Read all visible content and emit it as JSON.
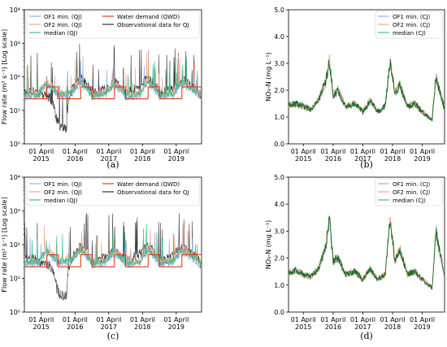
{
  "colors": {
    "of1": "#8fb0e8",
    "of2": "#f0a88a",
    "median": "#3fbf8f",
    "qwd": "#e8381d",
    "obs": "#333333",
    "cj_line": "#1a6b20"
  },
  "chart_data": [
    {
      "panel": "(a)",
      "type": "line",
      "ylabel": "Flow rate (m³ s⁻¹) [Log scale]",
      "yscale": "log",
      "ylim": [
        1,
        10000
      ],
      "yticks": [
        "10⁰",
        "10¹",
        "10²",
        "10³",
        "10⁴"
      ],
      "xlim": [
        "2014-10-01",
        "2019-12-31"
      ],
      "xticks": [
        [
          "01 April",
          "2015"
        ],
        [
          "01 April",
          "2016"
        ],
        [
          "01 April",
          "2017"
        ],
        [
          "01 April",
          "2018"
        ],
        [
          "01 April",
          "2019"
        ]
      ],
      "legend": {
        "placement": "top",
        "entries": [
          "OF1 min. (QJ)",
          "OF2 min. (QJ)",
          "median (QJ)",
          "Water demand (QWD)",
          "Observational data for QJ"
        ]
      },
      "series": [
        {
          "name": "Water demand (QWD)",
          "x": [
            "2014-10-01",
            "2015-03-01",
            "2015-06-01",
            "2015-10-01",
            "2016-03-01",
            "2016-06-01",
            "2016-10-01",
            "2017-03-01",
            "2017-06-01",
            "2017-10-01",
            "2018-03-01",
            "2018-06-01",
            "2018-10-01",
            "2019-03-01",
            "2019-06-01",
            "2019-12-31"
          ],
          "y": [
            22,
            22,
            50,
            22,
            22,
            50,
            22,
            22,
            50,
            22,
            22,
            50,
            22,
            22,
            50,
            22
          ]
        },
        {
          "name": "median (QJ)",
          "x": [
            "2014-10-01",
            "2015-03-01",
            "2015-06-01",
            "2015-10-01",
            "2016-03-01",
            "2016-06-01",
            "2016-10-01",
            "2017-03-01",
            "2017-06-01",
            "2017-10-01",
            "2018-03-01",
            "2018-06-01",
            "2018-10-01",
            "2019-03-01",
            "2019-06-01",
            "2019-12-31"
          ],
          "y": [
            28,
            30,
            65,
            30,
            35,
            70,
            28,
            32,
            60,
            28,
            30,
            70,
            30,
            32,
            65,
            25
          ]
        },
        {
          "name": "Observational data for QJ",
          "x": [
            "2014-10-01",
            "2015-01-01",
            "2015-04-01",
            "2015-07-01",
            "2015-09-15",
            "2015-11-01",
            "2016-01-01",
            "2016-03-01",
            "2016-06-01",
            "2016-10-01",
            "2017-03-01",
            "2017-06-01",
            "2017-10-01",
            "2018-03-01",
            "2018-06-01",
            "2018-10-01",
            "2019-03-01",
            "2019-06-01",
            "2019-12-31"
          ],
          "y": [
            35,
            40,
            30,
            25,
            5,
            3,
            3,
            40,
            90,
            30,
            45,
            70,
            30,
            50,
            90,
            30,
            45,
            80,
            25
          ]
        }
      ]
    },
    {
      "panel": "(b)",
      "type": "line",
      "ylabel": "NO₃-N (mg L⁻¹)",
      "ylim": [
        0,
        5
      ],
      "yticks": [
        "0.0",
        "1.0",
        "2.0",
        "3.0",
        "4.0",
        "5.0"
      ],
      "xlim": [
        "2014-10-01",
        "2019-12-31"
      ],
      "xticks": [
        [
          "01 April",
          "2015"
        ],
        [
          "01 April",
          "2016"
        ],
        [
          "01 April",
          "2017"
        ],
        [
          "01 April",
          "2018"
        ],
        [
          "01 April",
          "2019"
        ]
      ],
      "legend": {
        "placement": "top-right",
        "entries": [
          "OF1 min. (CJ)",
          "OF2 min. (CJ)",
          "median (CJ)"
        ]
      },
      "series": [
        {
          "name": "median (CJ)",
          "x": [
            "2014-10-01",
            "2015-01-01",
            "2015-04-01",
            "2015-07-01",
            "2015-10-01",
            "2016-01-01",
            "2016-02-15",
            "2016-04-01",
            "2016-06-01",
            "2016-09-01",
            "2017-01-01",
            "2017-04-01",
            "2017-07-01",
            "2017-10-01",
            "2018-01-01",
            "2018-03-01",
            "2018-05-01",
            "2018-07-01",
            "2018-10-01",
            "2019-01-01",
            "2019-04-01",
            "2019-06-15",
            "2019-08-01",
            "2019-09-15",
            "2019-12-31"
          ],
          "y": [
            1.45,
            1.5,
            1.4,
            1.3,
            1.6,
            2.3,
            3.1,
            1.8,
            2.0,
            1.4,
            1.5,
            1.2,
            1.6,
            1.2,
            1.4,
            3.05,
            1.9,
            2.2,
            1.4,
            1.5,
            1.2,
            1.0,
            0.9,
            2.5,
            1.3
          ]
        }
      ]
    },
    {
      "panel": "(c)",
      "type": "line",
      "ylabel": "Flow rate (m³ s⁻¹) [Log scale]",
      "yscale": "log",
      "ylim": [
        1,
        10000
      ],
      "yticks": [
        "10⁰",
        "10¹",
        "10²",
        "10³",
        "10⁴"
      ],
      "xlim": [
        "2014-10-01",
        "2019-12-31"
      ],
      "xticks": [
        [
          "01 April",
          "2015"
        ],
        [
          "01 April",
          "2016"
        ],
        [
          "01 April",
          "2017"
        ],
        [
          "01 April",
          "2018"
        ],
        [
          "01 April",
          "2019"
        ]
      ],
      "legend": {
        "placement": "top",
        "entries": [
          "OF1 min. (QJ)",
          "OF2 min. (QJ)",
          "median (QJ)",
          "Water demand (QWD)",
          "Observational data for QJ"
        ]
      },
      "series": [
        {
          "name": "Water demand (QWD)",
          "x": [
            "2014-10-01",
            "2015-03-01",
            "2015-06-01",
            "2015-10-01",
            "2016-03-01",
            "2016-06-01",
            "2016-10-01",
            "2017-03-01",
            "2017-06-01",
            "2017-10-01",
            "2018-03-01",
            "2018-06-01",
            "2018-10-01",
            "2019-03-01",
            "2019-06-01",
            "2019-12-31"
          ],
          "y": [
            22,
            22,
            50,
            22,
            22,
            50,
            22,
            22,
            50,
            22,
            22,
            50,
            22,
            22,
            50,
            22
          ]
        },
        {
          "name": "median (QJ)",
          "x": [
            "2014-10-01",
            "2015-03-01",
            "2015-06-01",
            "2015-10-01",
            "2016-03-01",
            "2016-06-01",
            "2016-10-01",
            "2017-03-01",
            "2017-06-01",
            "2017-10-01",
            "2018-03-01",
            "2018-06-01",
            "2018-10-01",
            "2019-03-01",
            "2019-06-01",
            "2019-12-31"
          ],
          "y": [
            28,
            30,
            65,
            30,
            35,
            70,
            28,
            32,
            60,
            28,
            30,
            70,
            30,
            32,
            65,
            25
          ]
        },
        {
          "name": "Observational data for QJ",
          "x": [
            "2014-10-01",
            "2015-01-01",
            "2015-04-01",
            "2015-07-01",
            "2015-09-15",
            "2015-11-01",
            "2016-01-01",
            "2016-03-01",
            "2016-06-01",
            "2016-10-01",
            "2017-03-01",
            "2017-06-01",
            "2017-10-01",
            "2018-03-01",
            "2018-06-01",
            "2018-10-01",
            "2019-03-01",
            "2019-06-01",
            "2019-12-31"
          ],
          "y": [
            35,
            40,
            30,
            25,
            5,
            3,
            3,
            40,
            90,
            30,
            45,
            70,
            30,
            50,
            90,
            30,
            45,
            80,
            25
          ]
        }
      ]
    },
    {
      "panel": "(d)",
      "type": "line",
      "ylabel": "NO₃-N (mg L⁻¹)",
      "ylim": [
        0,
        5
      ],
      "yticks": [
        "0.0",
        "1.0",
        "2.0",
        "3.0",
        "4.0",
        "5.0"
      ],
      "xlim": [
        "2014-10-01",
        "2019-12-31"
      ],
      "xticks": [
        [
          "01 April",
          "2015"
        ],
        [
          "01 April",
          "2016"
        ],
        [
          "01 April",
          "2017"
        ],
        [
          "01 April",
          "2018"
        ],
        [
          "01 April",
          "2019"
        ]
      ],
      "legend": {
        "placement": "top-right",
        "entries": [
          "OF1 min. (CJ)",
          "OF2 min. (CJ)",
          "median (CJ)"
        ]
      },
      "series": [
        {
          "name": "median (CJ)",
          "x": [
            "2014-10-01",
            "2015-01-01",
            "2015-04-01",
            "2015-07-01",
            "2015-10-01",
            "2016-01-01",
            "2016-02-15",
            "2016-04-01",
            "2016-06-01",
            "2016-09-01",
            "2017-01-01",
            "2017-04-01",
            "2017-07-01",
            "2017-10-01",
            "2018-01-01",
            "2018-03-01",
            "2018-05-01",
            "2018-07-01",
            "2018-10-01",
            "2019-01-01",
            "2019-04-01",
            "2019-06-15",
            "2019-08-01",
            "2019-09-15",
            "2019-12-31"
          ],
          "y": [
            1.45,
            1.55,
            1.4,
            1.3,
            1.6,
            2.4,
            3.5,
            1.9,
            2.0,
            1.4,
            1.5,
            1.2,
            1.6,
            1.2,
            1.4,
            3.4,
            1.9,
            2.3,
            1.4,
            1.5,
            1.2,
            1.0,
            0.9,
            3.0,
            1.3
          ]
        }
      ]
    }
  ]
}
